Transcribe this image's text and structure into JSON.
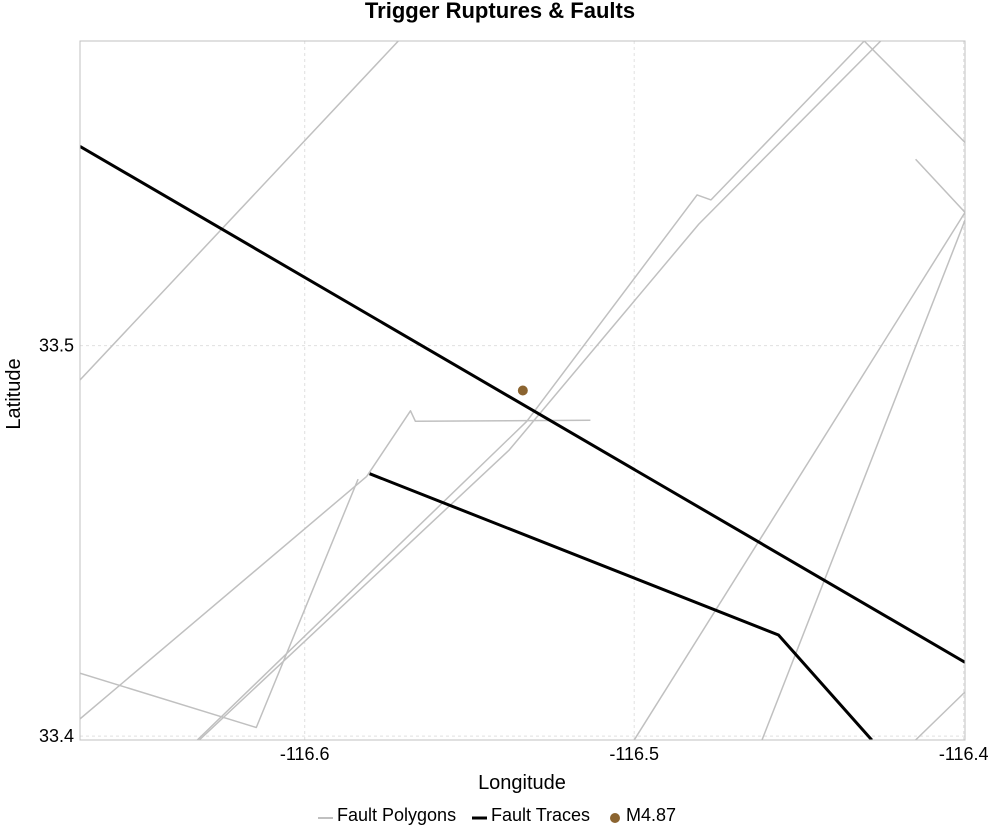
{
  "chart_data": {
    "type": "line",
    "title": "Trigger Ruptures & Faults",
    "xlabel": "Longitude",
    "ylabel": "Latitude",
    "xlim": [
      -116.6682,
      -116.3996
    ],
    "ylim": [
      33.399,
      33.578
    ],
    "x_ticks": [
      -116.6,
      -116.5,
      -116.4
    ],
    "x_tick_labels": [
      "-116.6",
      "-116.5",
      "-116.4"
    ],
    "y_ticks": [
      33.4,
      33.5
    ],
    "y_tick_labels": [
      "33.4",
      "33.5"
    ],
    "grid": true,
    "legend_position": "bottom-center",
    "colors": {
      "fault_polygons": "#c0c0c0",
      "fault_traces": "#000000",
      "event": "#8b6430",
      "grid": "#e0e0e0",
      "frame": "#c0c0c0"
    },
    "series": [
      {
        "name": "Fault Polygons",
        "kind": "polygon-lines",
        "lines": [
          [
            [
              -116.6682,
              33.4912
            ],
            [
              -116.5716,
              33.578
            ]
          ],
          [
            [
              -116.4302,
              33.578
            ],
            [
              -116.3996,
              33.552
            ]
          ],
          [
            [
              -116.4146,
              33.5477
            ],
            [
              -116.3996,
              33.5341
            ]
          ],
          [
            [
              -116.5812,
              33.4665
            ],
            [
              -116.6682,
              33.4044
            ]
          ],
          [
            [
              -116.5812,
              33.4665
            ],
            [
              -116.5679,
              33.4833
            ],
            [
              -116.5664,
              33.4806
            ],
            [
              -116.5133,
              33.4809
            ]
          ],
          [
            [
              -116.6326,
              33.399
            ],
            [
              -116.5326,
              33.4806
            ],
            [
              -116.4809,
              33.5386
            ],
            [
              -116.4767,
              33.5373
            ],
            [
              -116.4302,
              33.578
            ]
          ],
          [
            [
              -116.632,
              33.399
            ],
            [
              -116.5379,
              33.4733
            ],
            [
              -116.4804,
              33.5311
            ],
            [
              -116.4252,
              33.578
            ]
          ],
          [
            [
              -116.6682,
              33.4161
            ],
            [
              -116.6147,
              33.4022
            ],
            [
              -116.5838,
              33.4658
            ]
          ],
          [
            [
              -116.5,
              33.399
            ],
            [
              -116.3996,
              33.5341
            ]
          ],
          [
            [
              -116.4612,
              33.399
            ],
            [
              -116.3996,
              33.5321
            ]
          ],
          [
            [
              -116.4146,
              33.5477
            ],
            [
              -116.4146,
              33.5477
            ]
          ],
          [
            [
              -116.4146,
              33.399
            ],
            [
              -116.3996,
              33.4113
            ]
          ]
        ]
      },
      {
        "name": "Fault Traces",
        "kind": "lines",
        "lines": [
          [
            [
              -116.6682,
              33.551
            ],
            [
              -116.3996,
              33.4189
            ]
          ],
          [
            [
              -116.5803,
              33.4672
            ],
            [
              -116.4562,
              33.4259
            ],
            [
              -116.4279,
              33.399
            ]
          ]
        ]
      },
      {
        "name": "M4.87",
        "kind": "point",
        "points": [
          [
            -116.5338,
            33.4885
          ]
        ]
      }
    ]
  }
}
